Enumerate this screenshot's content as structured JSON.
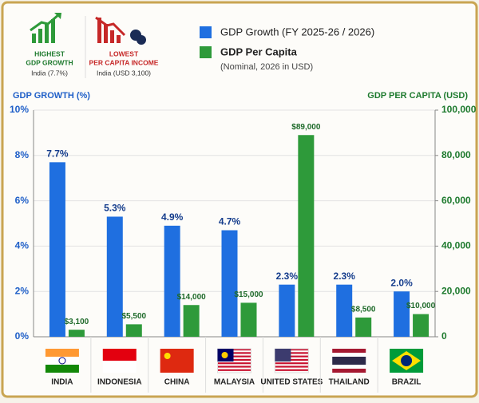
{
  "chart_data": {
    "type": "bar",
    "annotations": [
      {
        "lines": [
          "HIGHEST",
          "GDP GROWTH"
        ],
        "detail": "India (7.7%)"
      },
      {
        "lines": [
          "LOWEST",
          "PER CAPITA INCOME"
        ],
        "detail": "India (USD 3,100)"
      }
    ],
    "ylabel": "GDP GROWTH (%)",
    "y2label": "GDP PER CAPITA (USD)",
    "categories": [
      "INDIA",
      "INDONESIA",
      "CHINA",
      "MALAYSIA",
      "UNITED STATES",
      "THAILAND",
      "BRAZIL"
    ],
    "series": [
      {
        "name": "GDP Growth (FY 2025-26 / 2026)",
        "color": "#1f6fe0",
        "values": [
          7.7,
          5.3,
          4.9,
          4.7,
          2.3,
          2.3,
          2.0
        ],
        "value_labels": [
          "7.7%",
          "5.3%",
          "4.9%",
          "4.7%",
          "2.3%",
          "2.3%",
          "2.0%"
        ]
      },
      {
        "name": "GDP Per Capita",
        "name_detail": "(Nominal, 2026 in USD)",
        "color": "#2e9a3a",
        "axis": "y2",
        "values": [
          3100,
          5500,
          14000,
          15000,
          89000,
          8500,
          10000
        ],
        "value_labels": [
          "$3,100",
          "$5,500",
          "$14,000",
          "$15,000",
          "$89,000",
          "$8,500",
          "$10,000"
        ]
      }
    ],
    "ylim": [
      0,
      10
    ],
    "yticks": [
      {
        "value": 0,
        "label": "0%"
      },
      {
        "value": 2,
        "label": "2%"
      },
      {
        "value": 4,
        "label": "4%"
      },
      {
        "value": 6,
        "label": "6%"
      },
      {
        "value": 8,
        "label": "8%"
      },
      {
        "value": 10,
        "label": "10%"
      }
    ],
    "y2lim": [
      0,
      100000
    ],
    "y2ticks": [
      0,
      {
        "value": 20000,
        "label": "20,000"
      },
      {
        "value": 40000,
        "label": "40,000"
      },
      {
        "value": 60000,
        "label": "60,000"
      },
      {
        "value": 80000,
        "label": "80,000"
      },
      {
        "value": 100000,
        "label": "100,000"
      }
    ],
    "grid": true
  }
}
